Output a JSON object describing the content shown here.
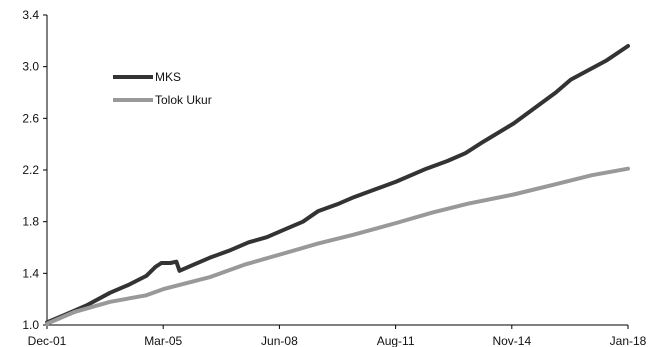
{
  "chart_data": {
    "type": "line",
    "title": "",
    "xlabel": "",
    "ylabel": "",
    "x_tick_labels": [
      "Dec-01",
      "Mar-05",
      "Jun-08",
      "Aug-11",
      "Nov-14",
      "Jan-18"
    ],
    "y_tick_labels": [
      "1.0",
      "1.4",
      "1.8",
      "2.2",
      "2.6",
      "3.0",
      "3.4"
    ],
    "y_ticks": [
      1.0,
      1.4,
      1.8,
      2.2,
      2.6,
      3.0,
      3.4
    ],
    "ylim": [
      1.0,
      3.4
    ],
    "xlim": [
      "2001-12",
      "2018-01"
    ],
    "grid": false,
    "legend_position": "upper-left",
    "series": [
      {
        "name": "MKS",
        "color": "#333333",
        "points": [
          [
            "2001-12",
            1.02
          ],
          [
            "2002-06",
            1.08
          ],
          [
            "2003-01",
            1.15
          ],
          [
            "2003-09",
            1.25
          ],
          [
            "2004-03",
            1.31
          ],
          [
            "2004-09",
            1.38
          ],
          [
            "2004-12",
            1.45
          ],
          [
            "2005-02",
            1.48
          ],
          [
            "2005-05",
            1.48
          ],
          [
            "2005-07",
            1.49
          ],
          [
            "2005-08",
            1.42
          ],
          [
            "2005-12",
            1.46
          ],
          [
            "2006-06",
            1.52
          ],
          [
            "2007-01",
            1.58
          ],
          [
            "2007-07",
            1.64
          ],
          [
            "2008-01",
            1.68
          ],
          [
            "2008-06",
            1.73
          ],
          [
            "2009-01",
            1.8
          ],
          [
            "2009-06",
            1.88
          ],
          [
            "2010-01",
            1.94
          ],
          [
            "2010-06",
            1.99
          ],
          [
            "2011-01",
            2.05
          ],
          [
            "2011-08",
            2.11
          ],
          [
            "2012-06",
            2.21
          ],
          [
            "2013-01",
            2.27
          ],
          [
            "2013-07",
            2.33
          ],
          [
            "2014-01",
            2.42
          ],
          [
            "2014-11",
            2.56
          ],
          [
            "2015-06",
            2.68
          ],
          [
            "2016-01",
            2.8
          ],
          [
            "2016-06",
            2.9
          ],
          [
            "2017-06",
            3.05
          ],
          [
            "2018-01",
            3.16
          ]
        ]
      },
      {
        "name": "Tolok Ukur",
        "color": "#999999",
        "points": [
          [
            "2001-12",
            1.01
          ],
          [
            "2002-09",
            1.1
          ],
          [
            "2003-09",
            1.18
          ],
          [
            "2004-09",
            1.23
          ],
          [
            "2005-03",
            1.28
          ],
          [
            "2006-06",
            1.37
          ],
          [
            "2007-06",
            1.47
          ],
          [
            "2008-06",
            1.55
          ],
          [
            "2009-06",
            1.63
          ],
          [
            "2010-06",
            1.7
          ],
          [
            "2011-08",
            1.79
          ],
          [
            "2012-08",
            1.87
          ],
          [
            "2013-08",
            1.94
          ],
          [
            "2014-11",
            2.01
          ],
          [
            "2016-01",
            2.09
          ],
          [
            "2017-01",
            2.16
          ],
          [
            "2018-01",
            2.21
          ]
        ]
      }
    ]
  }
}
